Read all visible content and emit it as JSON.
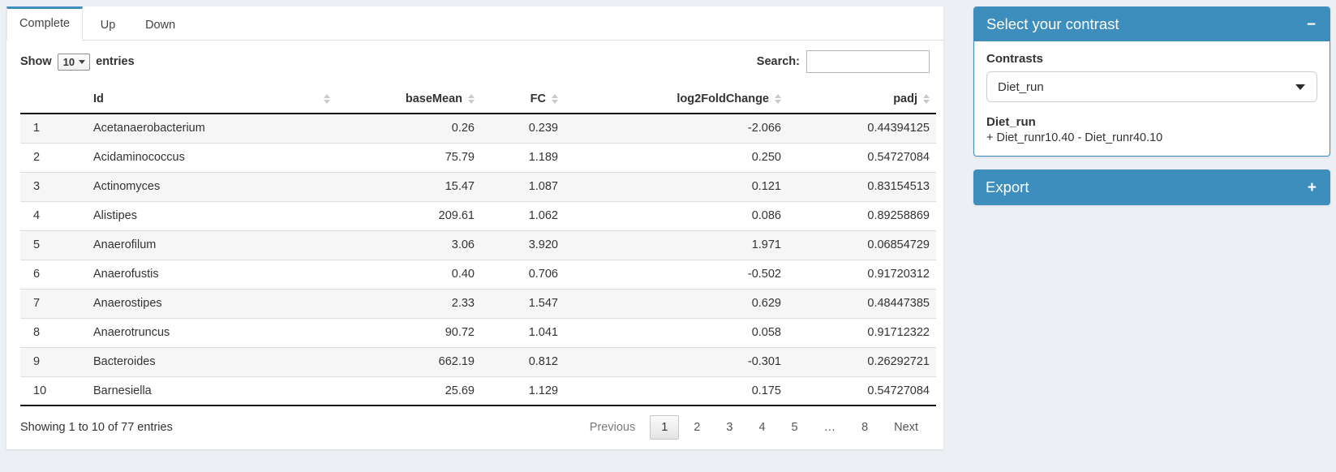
{
  "tabs": [
    {
      "label": "Complete",
      "active": true
    },
    {
      "label": "Up",
      "active": false
    },
    {
      "label": "Down",
      "active": false
    }
  ],
  "table_controls": {
    "show_label": "Show",
    "page_length": "10",
    "entries_label": "entries",
    "search_label": "Search:",
    "search_value": ""
  },
  "table": {
    "columns": [
      {
        "label": "",
        "align": "left",
        "sortable": false
      },
      {
        "label": "Id",
        "align": "left",
        "sortable": true
      },
      {
        "label": "baseMean",
        "align": "right",
        "sortable": true
      },
      {
        "label": "FC",
        "align": "right",
        "sortable": true
      },
      {
        "label": "log2FoldChange",
        "align": "right",
        "sortable": true
      },
      {
        "label": "padj",
        "align": "right",
        "sortable": true
      }
    ],
    "rows": [
      [
        "1",
        "Acetanaerobacterium",
        "0.26",
        "0.239",
        "-2.066",
        "0.44394125"
      ],
      [
        "2",
        "Acidaminococcus",
        "75.79",
        "1.189",
        "0.250",
        "0.54727084"
      ],
      [
        "3",
        "Actinomyces",
        "15.47",
        "1.087",
        "0.121",
        "0.83154513"
      ],
      [
        "4",
        "Alistipes",
        "209.61",
        "1.062",
        "0.086",
        "0.89258869"
      ],
      [
        "5",
        "Anaerofilum",
        "3.06",
        "3.920",
        "1.971",
        "0.06854729"
      ],
      [
        "6",
        "Anaerofustis",
        "0.40",
        "0.706",
        "-0.502",
        "0.91720312"
      ],
      [
        "7",
        "Anaerostipes",
        "2.33",
        "1.547",
        "0.629",
        "0.48447385"
      ],
      [
        "8",
        "Anaerotruncus",
        "90.72",
        "1.041",
        "0.058",
        "0.91712322"
      ],
      [
        "9",
        "Bacteroides",
        "662.19",
        "0.812",
        "-0.301",
        "0.26292721"
      ],
      [
        "10",
        "Barnesiella",
        "25.69",
        "1.129",
        "0.175",
        "0.54727084"
      ]
    ]
  },
  "table_footer": {
    "info": "Showing 1 to 10 of 77 entries",
    "pagination": [
      {
        "label": "Previous",
        "state": "disabled"
      },
      {
        "label": "1",
        "state": "active"
      },
      {
        "label": "2",
        "state": "normal"
      },
      {
        "label": "3",
        "state": "normal"
      },
      {
        "label": "4",
        "state": "normal"
      },
      {
        "label": "5",
        "state": "normal"
      },
      {
        "label": "…",
        "state": "ellipsis"
      },
      {
        "label": "8",
        "state": "normal"
      },
      {
        "label": "Next",
        "state": "normal"
      }
    ]
  },
  "contrast_panel": {
    "title": "Select your contrast",
    "collapse_icon": "−",
    "contrasts_label": "Contrasts",
    "selected_contrast": "Diet_run",
    "contrast_name": "Diet_run",
    "contrast_formula": "+ Diet_runr10.40 - Diet_runr40.10"
  },
  "export_panel": {
    "title": "Export",
    "expand_icon": "+"
  },
  "colors": {
    "primary": "#3d8ebc",
    "page_background": "#ecf0f5",
    "row_stripe": "#f6f6f6"
  }
}
